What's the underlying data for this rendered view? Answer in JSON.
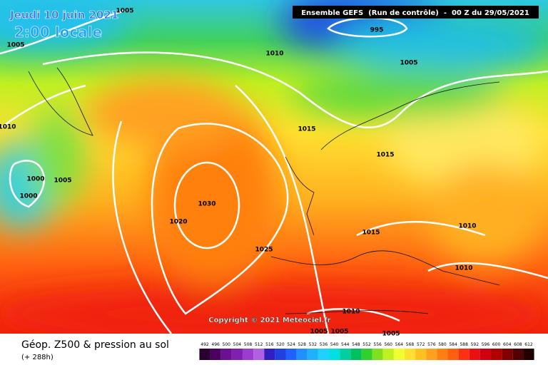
{
  "header": {
    "date": "Jeudi 10 juin 2021",
    "time": "2:00 locale",
    "run": "Ensemble GEFS  (Run de contrôle)  -  00 Z du 29/05/2021"
  },
  "isobar_labels": [
    "1005",
    "1005",
    "995",
    "1010",
    "1005",
    "1010",
    "1015",
    "1015",
    "1000",
    "1005",
    "1000",
    "1030",
    "1020",
    "1015",
    "1010",
    "1025",
    "1010",
    "1010",
    "1005",
    "1005",
    "1005"
  ],
  "footer": {
    "title": "Géop. Z500 & pression au sol",
    "lead": "(+ 288h)",
    "copyright": "Copyright © 2021 Meteociel.fr"
  },
  "legend": {
    "levels": [
      492,
      496,
      500,
      504,
      508,
      512,
      516,
      520,
      524,
      528,
      532,
      536,
      540,
      544,
      548,
      552,
      556,
      560,
      564,
      568,
      572,
      576,
      580,
      584,
      588,
      592,
      596,
      600,
      604,
      608,
      612
    ],
    "colors": [
      "#2a0030",
      "#4b0060",
      "#6a1090",
      "#8020b0",
      "#9a3ccf",
      "#b060e0",
      "#3020c0",
      "#2040e0",
      "#2060ff",
      "#2090ff",
      "#20b0ff",
      "#20d0ff",
      "#00e0e0",
      "#00d0a0",
      "#00c060",
      "#30d030",
      "#80e020",
      "#c0f020",
      "#f0ff30",
      "#ffe030",
      "#ffc020",
      "#ffa020",
      "#ff8010",
      "#ff6010",
      "#ff3010",
      "#e81010",
      "#d00010",
      "#b00000",
      "#800000",
      "#500000",
      "#200000"
    ]
  }
}
